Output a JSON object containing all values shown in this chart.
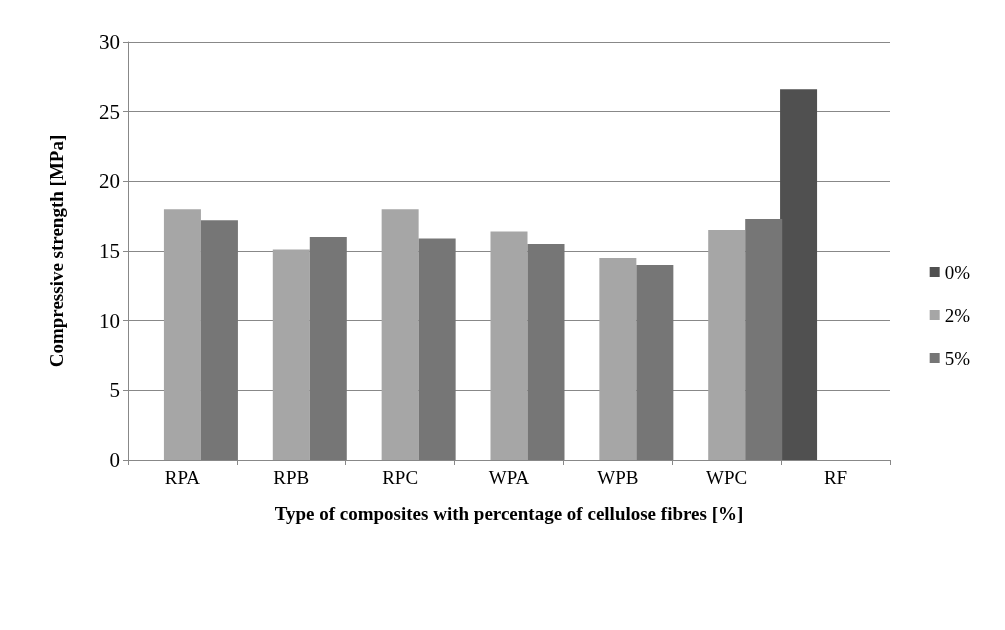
{
  "chart_data": {
    "type": "bar",
    "xlabel": "Type of composites with percentage of cellulose fibres [%]",
    "ylabel": "Compressive strength [MPa]",
    "categories": [
      "RPA",
      "RPB",
      "RPC",
      "WPA",
      "WPB",
      "WPC",
      "RF"
    ],
    "series": [
      {
        "name": "0%",
        "color": "#505050",
        "values": [
          null,
          null,
          null,
          null,
          null,
          null,
          26.6
        ]
      },
      {
        "name": "2%",
        "color": "#a6a6a6",
        "values": [
          18.0,
          15.1,
          18.0,
          16.4,
          14.5,
          16.5,
          null
        ]
      },
      {
        "name": "5%",
        "color": "#767676",
        "values": [
          17.2,
          16.0,
          15.9,
          15.5,
          14.0,
          17.3,
          null
        ]
      }
    ],
    "ylim": [
      0,
      30
    ],
    "yticks": [
      0,
      5,
      10,
      15,
      20,
      25,
      30
    ],
    "grid": "y",
    "legend": "right"
  }
}
